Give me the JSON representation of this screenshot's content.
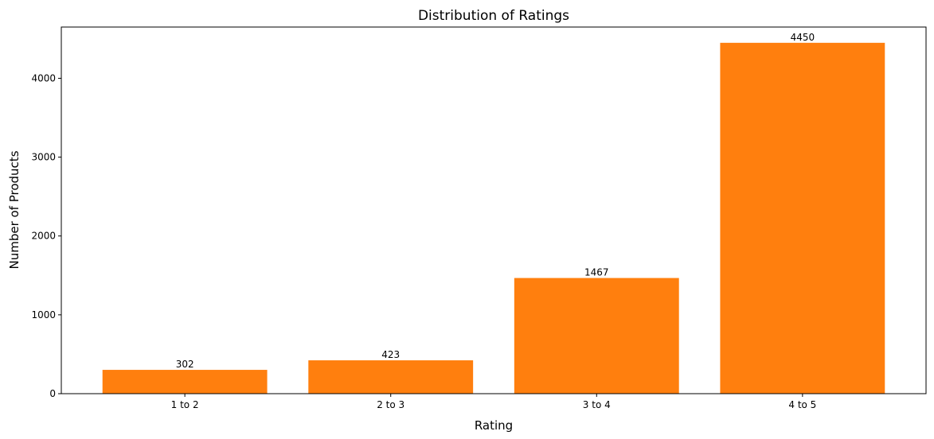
{
  "chart_data": {
    "type": "bar",
    "title": "Distribution of Ratings",
    "xlabel": "Rating",
    "ylabel": "Number of Products",
    "categories": [
      "1 to 2",
      "2 to 3",
      "3 to 4",
      "4 to 5"
    ],
    "values": [
      302,
      423,
      1467,
      4450
    ],
    "data_labels": [
      "302",
      "423",
      "1467",
      "4450"
    ],
    "ylim": [
      0,
      4650
    ],
    "yticks": [
      0,
      1000,
      2000,
      3000,
      4000
    ],
    "ytick_labels": [
      "0",
      "1000",
      "2000",
      "3000",
      "4000"
    ],
    "grid": false,
    "legend": "none",
    "bar_color": "#ff7f0e"
  }
}
